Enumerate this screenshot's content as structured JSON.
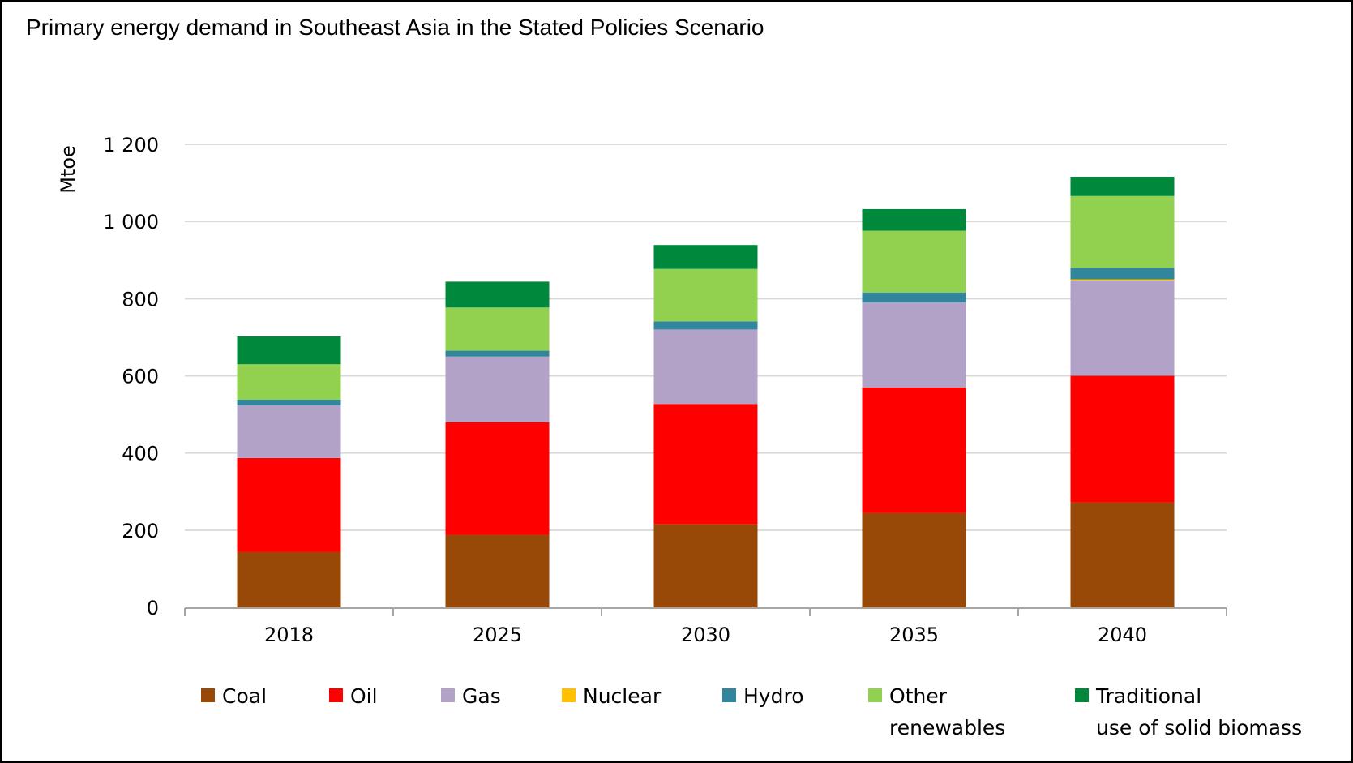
{
  "title": "Primary energy demand in Southeast Asia in the Stated Policies Scenario",
  "chart_data": {
    "type": "bar",
    "stacked": true,
    "title": "Primary energy demand in Southeast Asia in the Stated Policies Scenario",
    "xlabel": "",
    "ylabel": "Mtoe",
    "ylim": [
      0,
      1200
    ],
    "yticks": [
      0,
      200,
      400,
      600,
      800,
      1000,
      1200
    ],
    "ytick_labels": [
      "0",
      "200",
      "400",
      "600",
      "800",
      "1 000",
      "1 200"
    ],
    "grid": true,
    "legend_position": "bottom",
    "categories": [
      "2018",
      "2025",
      "2030",
      "2035",
      "2040"
    ],
    "series": [
      {
        "name": "Coal",
        "color": "#984807",
        "values": [
          143,
          188,
          215,
          244,
          272
        ]
      },
      {
        "name": "Oil",
        "color": "#ff0000",
        "values": [
          244,
          292,
          312,
          326,
          328
        ]
      },
      {
        "name": "Gas",
        "color": "#b3a2c7",
        "values": [
          136,
          170,
          193,
          220,
          247
        ]
      },
      {
        "name": "Nuclear",
        "color": "#ffc000",
        "values": [
          0,
          0,
          0,
          0,
          3
        ]
      },
      {
        "name": "Hydro",
        "color": "#31859c",
        "values": [
          15,
          15,
          21,
          26,
          30
        ]
      },
      {
        "name": "Other renewables",
        "label_lines": [
          "Other",
          "renewables"
        ],
        "color": "#92d050",
        "values": [
          92,
          112,
          136,
          160,
          186
        ]
      },
      {
        "name": "Traditional use of solid biomass",
        "label_lines": [
          "Traditional",
          "use of solid biomass"
        ],
        "color": "#00883c",
        "values": [
          72,
          67,
          62,
          56,
          50
        ]
      }
    ]
  }
}
